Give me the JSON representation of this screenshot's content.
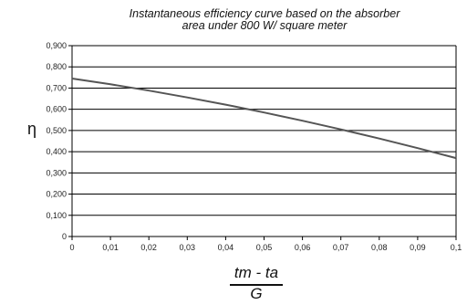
{
  "chart_data": {
    "type": "line",
    "title_line1": "Instantaneous efficiency curve based on the absorber",
    "title_line2": "area under 800 W/ square meter",
    "ylabel": "η",
    "xlabel_numerator": "tm - ta",
    "xlabel_denominator": "G",
    "xlim": [
      0,
      0.1
    ],
    "ylim": [
      0,
      0.9
    ],
    "x_ticks": [
      "0",
      "0,01",
      "0,02",
      "0,03",
      "0,04",
      "0,05",
      "0,06",
      "0,07",
      "0,08",
      "0,09",
      "0,1"
    ],
    "y_ticks": [
      "0",
      "0,100",
      "0,200",
      "0,300",
      "0,400",
      "0,500",
      "0,600",
      "0,700",
      "0,800",
      "0,900"
    ],
    "grid": "horizontal",
    "series": [
      {
        "x": [
          0,
          0.01,
          0.02,
          0.03,
          0.04,
          0.05,
          0.06,
          0.07,
          0.08,
          0.09,
          0.1
        ],
        "y": [
          0.745,
          0.718,
          0.688,
          0.656,
          0.622,
          0.585,
          0.546,
          0.505,
          0.462,
          0.417,
          0.37
        ],
        "color": "#555555"
      }
    ]
  }
}
